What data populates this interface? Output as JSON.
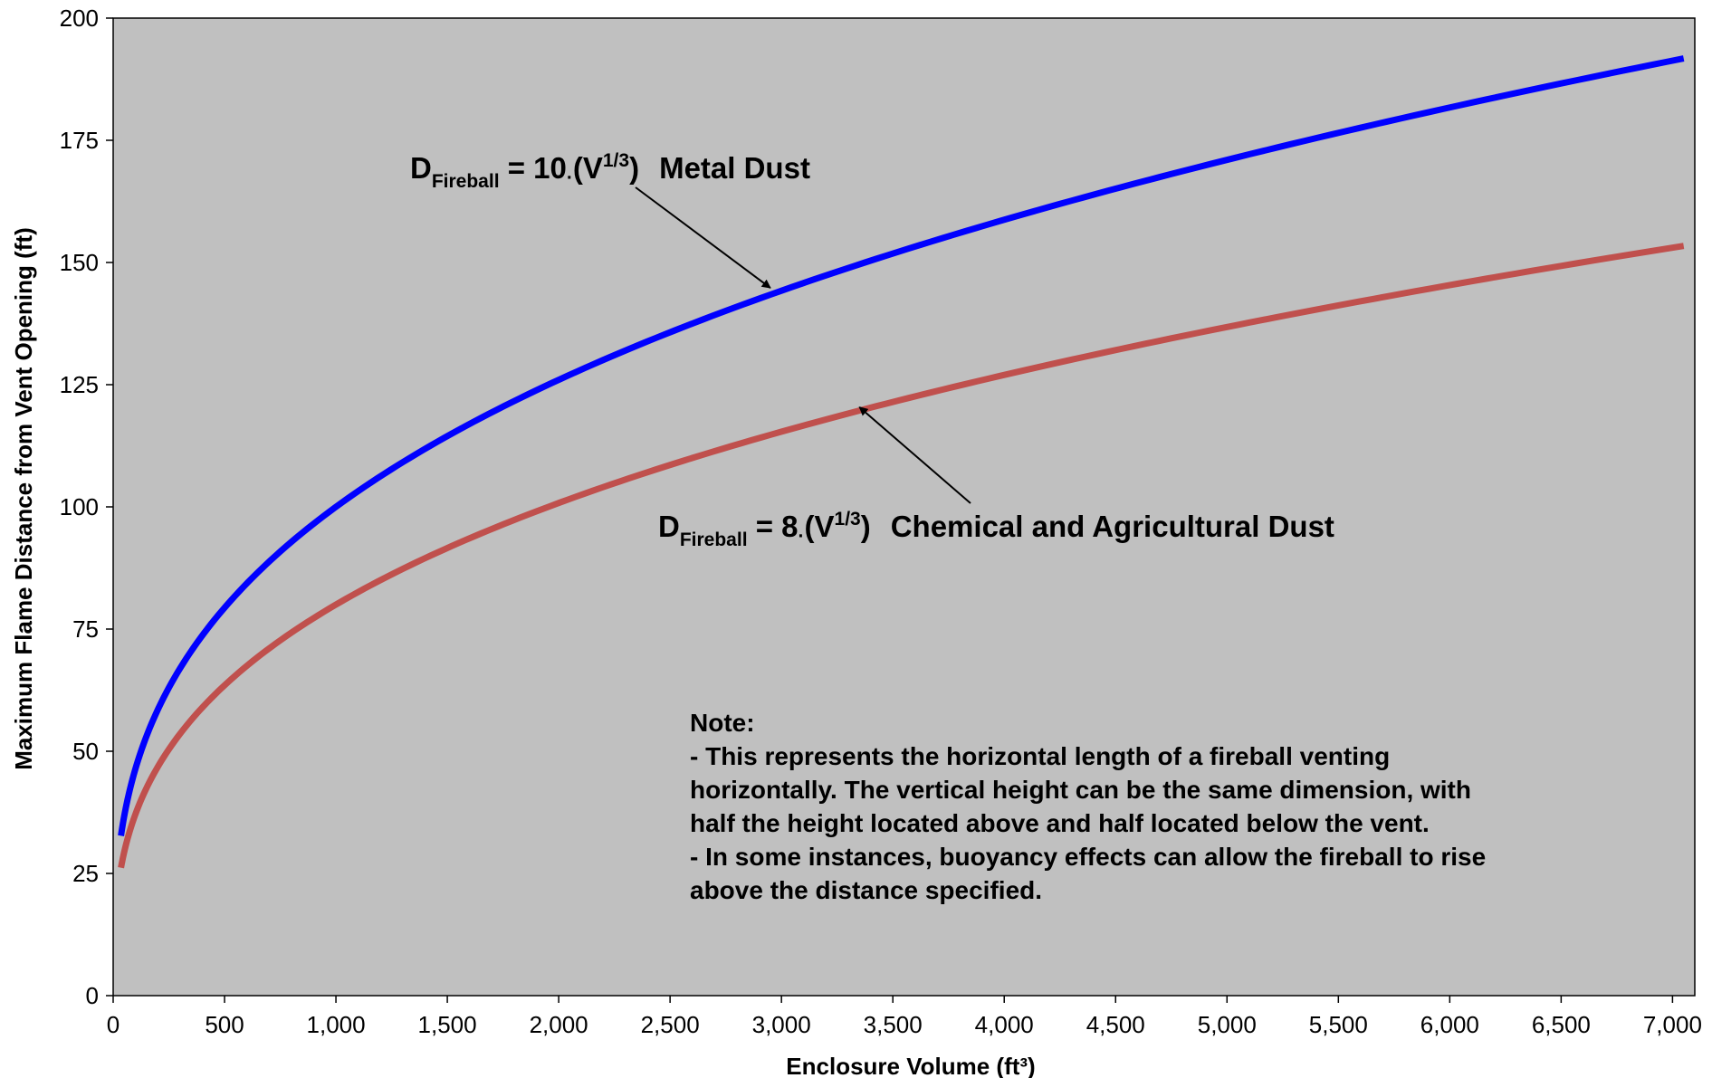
{
  "chart_data": {
    "type": "line",
    "xlabel": "Enclosure Volume (ft³)",
    "ylabel": "Maximum Flame Distance from Vent Opening (ft)",
    "xlim": [
      0,
      7100
    ],
    "ylim": [
      0,
      200
    ],
    "x_ticks": [
      "0",
      "500",
      "1,000",
      "1,500",
      "2,000",
      "2,500",
      "3,000",
      "3,500",
      "4,000",
      "4,500",
      "5,000",
      "5,500",
      "6,000",
      "6,500",
      "7,000"
    ],
    "y_ticks": [
      "0",
      "25",
      "50",
      "75",
      "100",
      "125",
      "150",
      "175",
      "200"
    ],
    "grid": false,
    "plot_background": "#c0c0c0",
    "series": [
      {
        "color": "#0000ff",
        "coefficient": 10,
        "x": [
          35,
          50,
          75,
          100,
          150,
          200,
          300,
          400,
          500,
          600,
          700,
          800,
          900,
          1000,
          1250,
          1500,
          1750,
          2000,
          2500,
          3000,
          3500,
          4000,
          4500,
          5000,
          5500,
          6000,
          6500,
          7050
        ],
        "y": [
          32.7,
          36.8,
          42.2,
          46.4,
          53.1,
          58.5,
          66.9,
          73.7,
          79.4,
          84.3,
          88.8,
          92.8,
          96.5,
          100.0,
          107.7,
          114.5,
          120.5,
          126.0,
          135.7,
          144.2,
          151.8,
          158.7,
          165.1,
          171.0,
          176.5,
          181.7,
          186.6,
          191.7
        ]
      },
      {
        "color": "#c0504d",
        "coefficient": 8,
        "x": [
          35,
          50,
          75,
          100,
          150,
          200,
          300,
          400,
          500,
          600,
          700,
          800,
          900,
          1000,
          1250,
          1500,
          1750,
          2000,
          2500,
          3000,
          3500,
          4000,
          4500,
          5000,
          5500,
          6000,
          6500,
          7050
        ],
        "y": [
          26.2,
          29.5,
          33.7,
          37.1,
          42.5,
          46.8,
          53.5,
          58.9,
          63.5,
          67.5,
          71.0,
          74.3,
          77.2,
          80.0,
          86.2,
          91.6,
          96.4,
          100.8,
          108.6,
          115.4,
          121.5,
          127.0,
          132.1,
          136.8,
          141.2,
          145.4,
          149.3,
          153.4
        ]
      }
    ],
    "annotations": {
      "metal": {
        "lead": "D",
        "sub": "Fireball",
        "eq": " = 10",
        "dot": "·",
        "open": "(V",
        "sup": "1/3",
        "close": ")",
        "label": "Metal Dust",
        "arrow_target": [
          2950,
          144.8
        ]
      },
      "chem": {
        "lead": "D",
        "sub": "Fireball",
        "eq": " = 8",
        "dot": "·",
        "open": "(V",
        "sup": "1/3",
        "close": ")",
        "label": "Chemical and Agricultural Dust",
        "arrow_target": [
          3350,
          120.4
        ]
      }
    },
    "note": [
      "Note:",
      "- This represents the horizontal length of a fireball venting",
      "horizontally. The vertical height can be the same dimension, with",
      "half the height located above and half located below the vent.",
      "- In some instances, buoyancy effects can allow the fireball to rise",
      "above the distance specified."
    ]
  }
}
